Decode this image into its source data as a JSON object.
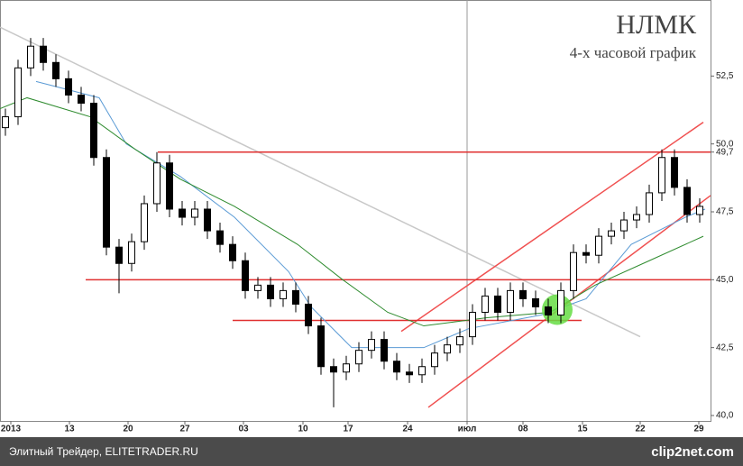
{
  "chart_data": {
    "type": "candlestick",
    "title": "НЛМК",
    "subtitle": "4-х часовой график",
    "x": [
      0.6,
      2,
      3.4,
      4.8,
      6.2,
      7.6,
      9,
      10.4,
      11.8,
      13.2,
      14.6,
      16,
      17.4,
      18.8,
      20.2,
      21.6,
      23,
      24.4,
      25.8,
      27.2,
      28.6,
      30,
      31.4,
      32.8,
      34.2,
      35.6,
      37,
      38.4,
      39.8,
      41.2,
      42.6,
      44,
      45.4,
      46.8,
      48.2,
      49.6,
      51,
      52.4,
      53.8,
      55.2,
      56.6,
      58,
      59.4,
      60.8,
      62.2,
      63.6,
      65,
      66.4,
      67.8,
      69.2,
      70.6,
      72,
      73.4,
      74.8,
      76.2,
      77.6
    ],
    "open": [
      50.6,
      51.0,
      52.8,
      53.6,
      53.0,
      52.4,
      51.8,
      51.5,
      49.5,
      46.2,
      45.6,
      46.4,
      47.8,
      49.3,
      47.6,
      47.3,
      47.6,
      46.8,
      46.3,
      45.7,
      44.6,
      44.8,
      44.3,
      44.6,
      44.1,
      43.3,
      41.8,
      41.6,
      41.9,
      42.4,
      42.8,
      42.0,
      41.6,
      41.5,
      41.8,
      42.3,
      42.6,
      42.9,
      43.8,
      44.4,
      43.8,
      44.6,
      44.3,
      44.0,
      43.7,
      44.6,
      46.0,
      45.9,
      46.6,
      46.8,
      47.2,
      47.4,
      48.2,
      49.5,
      48.4,
      47.4
    ],
    "high": [
      51.3,
      53.1,
      53.9,
      53.9,
      53.3,
      52.7,
      52.1,
      51.8,
      49.8,
      46.5,
      46.7,
      48.1,
      49.7,
      49.6,
      47.9,
      47.9,
      47.9,
      47.1,
      46.6,
      46.0,
      45.1,
      45.1,
      44.9,
      44.9,
      44.4,
      43.6,
      42.1,
      42.2,
      42.7,
      43.1,
      43.1,
      42.3,
      41.9,
      42.1,
      42.6,
      42.9,
      43.2,
      44.1,
      44.7,
      44.7,
      44.9,
      44.9,
      44.6,
      44.3,
      44.9,
      46.3,
      46.3,
      46.9,
      47.1,
      47.5,
      47.7,
      48.5,
      49.8,
      49.8,
      48.7,
      48.0
    ],
    "low": [
      50.3,
      50.7,
      52.5,
      52.7,
      52.1,
      51.5,
      51.2,
      49.2,
      45.9,
      44.5,
      45.3,
      46.1,
      47.5,
      47.3,
      47.0,
      47.0,
      46.5,
      46.0,
      45.4,
      44.3,
      44.3,
      44.0,
      44.0,
      43.8,
      43.0,
      41.5,
      40.3,
      41.3,
      41.6,
      42.1,
      41.7,
      41.3,
      41.2,
      41.2,
      41.5,
      42.0,
      42.3,
      42.6,
      43.5,
      43.5,
      43.5,
      44.0,
      43.7,
      43.4,
      43.4,
      44.3,
      45.6,
      45.6,
      46.3,
      46.5,
      46.9,
      47.1,
      47.9,
      48.1,
      47.1,
      47.1
    ],
    "close": [
      51.0,
      52.8,
      53.6,
      53.0,
      52.4,
      51.8,
      51.5,
      49.5,
      46.2,
      45.6,
      46.4,
      47.8,
      49.3,
      47.6,
      47.3,
      47.6,
      46.8,
      46.3,
      45.7,
      44.6,
      44.8,
      44.3,
      44.6,
      44.1,
      43.3,
      41.8,
      41.6,
      41.9,
      42.4,
      42.8,
      42.0,
      41.6,
      41.5,
      41.8,
      42.3,
      42.6,
      42.9,
      43.8,
      44.4,
      43.8,
      44.6,
      44.3,
      44.0,
      43.7,
      44.6,
      46.0,
      45.9,
      46.6,
      46.8,
      47.2,
      47.4,
      48.2,
      49.5,
      48.4,
      47.4,
      47.7
    ],
    "up_color": "#ffffff",
    "down_color": "#000000",
    "series": [
      {
        "color": "#5b9bd5",
        "x": [
          4,
          11,
          14,
          20,
          26,
          32,
          34.5,
          39,
          47,
          52,
          60,
          65,
          70,
          76,
          78.2
        ],
        "values": [
          52.3,
          51.7,
          50.0,
          48.8,
          47.3,
          45.3,
          44.0,
          42.5,
          42.5,
          43.2,
          43.7,
          44.3,
          46.3,
          47.3,
          47.6
        ]
      },
      {
        "color": "#2e8b2e",
        "x": [
          0,
          3,
          10,
          15,
          20,
          26,
          33,
          38,
          43,
          47,
          54,
          61,
          66,
          72,
          78
        ],
        "values": [
          51.3,
          51.7,
          51.0,
          49.8,
          48.7,
          47.7,
          46.3,
          45.0,
          43.8,
          43.3,
          43.6,
          43.8,
          44.8,
          45.7,
          46.6
        ]
      }
    ],
    "trend_lines": [
      {
        "color": "#c8c8c8",
        "x": [
          0,
          71
        ],
        "y": [
          54.3,
          42.9
        ]
      },
      {
        "color": "#f05050",
        "x": [
          44.5,
          78
        ],
        "y": [
          43.1,
          50.8
        ]
      },
      {
        "color": "#f05050",
        "x": [
          47.5,
          78.8
        ],
        "y": [
          40.3,
          48.1
        ]
      },
      {
        "color": "#e03030",
        "x": [
          17.5,
          78.8
        ],
        "y": [
          49.7,
          49.7
        ]
      },
      {
        "color": "#e03030",
        "x": [
          9.5,
          78.8
        ],
        "y": [
          45.0,
          45.0
        ]
      },
      {
        "color": "#e03030",
        "x": [
          25.8,
          64.5
        ],
        "y": [
          43.5,
          43.5
        ]
      }
    ],
    "highlight": {
      "x": 61.8,
      "y": 43.9,
      "color": "#66dd44"
    },
    "xlim": [
      0,
      78.8
    ],
    "ylim": [
      39.8,
      55.3
    ],
    "xticks": [
      {
        "value": 1.2,
        "label": "2013"
      },
      {
        "value": 7.7,
        "label": "13"
      },
      {
        "value": 14.2,
        "label": "20"
      },
      {
        "value": 20.5,
        "label": "27"
      },
      {
        "value": 27,
        "label": "03"
      },
      {
        "value": 33.6,
        "label": "10"
      },
      {
        "value": 38.6,
        "label": "17"
      },
      {
        "value": 45.2,
        "label": "24"
      },
      {
        "value": 51.8,
        "label": "июл"
      },
      {
        "value": 58,
        "label": "08"
      },
      {
        "value": 64.6,
        "label": "15"
      },
      {
        "value": 71,
        "label": "22"
      },
      {
        "value": 77.5,
        "label": "29"
      }
    ],
    "yticks": [
      {
        "value": 40,
        "label": "40,0"
      },
      {
        "value": 42.5,
        "label": "42,5"
      },
      {
        "value": 45,
        "label": "45,0"
      },
      {
        "value": 47.5,
        "label": "47,5"
      },
      {
        "value": 49.7,
        "label": "49,7"
      },
      {
        "value": 50,
        "label": "50,0"
      },
      {
        "value": 52.5,
        "label": "52,5"
      }
    ],
    "vline_x": 51.8
  },
  "footer": {
    "source": "Элитный Трейдер, ELITETRADER.RU",
    "watermark": "clip2net.com"
  }
}
